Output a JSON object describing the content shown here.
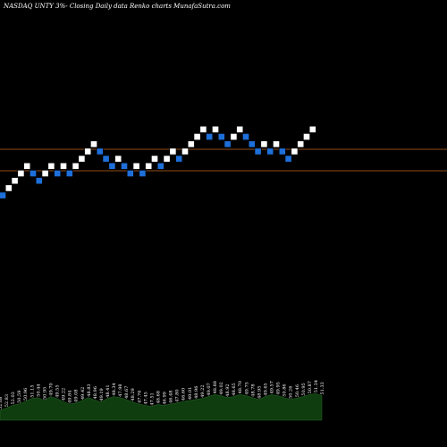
{
  "chart_data": {
    "type": "renko",
    "title": "NASDAQ UNTY 3%-  Closing Daily data Renko  charts MunafaSutra.com",
    "colors": {
      "up": "#ffffff",
      "down": "#1e6fd9",
      "line": "#c0641e",
      "volume": "#0f3d0f"
    },
    "reference_lines_price": [
      47.6,
      45.8
    ],
    "bricks": [
      {
        "dir": "down",
        "level": 42
      },
      {
        "dir": "up",
        "level": 43
      },
      {
        "dir": "up",
        "level": 44
      },
      {
        "dir": "up",
        "level": 45
      },
      {
        "dir": "up",
        "level": 46
      },
      {
        "dir": "down",
        "level": 45
      },
      {
        "dir": "down",
        "level": 44
      },
      {
        "dir": "up",
        "level": 45
      },
      {
        "dir": "up",
        "level": 46
      },
      {
        "dir": "down",
        "level": 45
      },
      {
        "dir": "up",
        "level": 46
      },
      {
        "dir": "down",
        "level": 45
      },
      {
        "dir": "up",
        "level": 46
      },
      {
        "dir": "up",
        "level": 47
      },
      {
        "dir": "up",
        "level": 48
      },
      {
        "dir": "up",
        "level": 49
      },
      {
        "dir": "down",
        "level": 48
      },
      {
        "dir": "down",
        "level": 47
      },
      {
        "dir": "down",
        "level": 46
      },
      {
        "dir": "up",
        "level": 47
      },
      {
        "dir": "down",
        "level": 46
      },
      {
        "dir": "down",
        "level": 45
      },
      {
        "dir": "up",
        "level": 46
      },
      {
        "dir": "down",
        "level": 45
      },
      {
        "dir": "up",
        "level": 46
      },
      {
        "dir": "up",
        "level": 47
      },
      {
        "dir": "down",
        "level": 46
      },
      {
        "dir": "up",
        "level": 47
      },
      {
        "dir": "up",
        "level": 48
      },
      {
        "dir": "down",
        "level": 47
      },
      {
        "dir": "up",
        "level": 48
      },
      {
        "dir": "up",
        "level": 49
      },
      {
        "dir": "up",
        "level": 50
      },
      {
        "dir": "up",
        "level": 51
      },
      {
        "dir": "down",
        "level": 50
      },
      {
        "dir": "up",
        "level": 51
      },
      {
        "dir": "down",
        "level": 50
      },
      {
        "dir": "down",
        "level": 49
      },
      {
        "dir": "up",
        "level": 50
      },
      {
        "dir": "up",
        "level": 51
      },
      {
        "dir": "down",
        "level": 50
      },
      {
        "dir": "down",
        "level": 49
      },
      {
        "dir": "down",
        "level": 48
      },
      {
        "dir": "up",
        "level": 49
      },
      {
        "dir": "down",
        "level": 48
      },
      {
        "dir": "up",
        "level": 49
      },
      {
        "dir": "down",
        "level": 48
      },
      {
        "dir": "down",
        "level": 47
      },
      {
        "dir": "up",
        "level": 48
      },
      {
        "dir": "up",
        "level": 49
      },
      {
        "dir": "up",
        "level": 50
      },
      {
        "dir": "up",
        "level": 51
      }
    ],
    "volume": {
      "values": [
        20,
        25,
        30,
        33,
        38,
        44,
        46,
        40,
        48,
        44,
        38,
        33,
        35,
        40,
        46,
        41,
        37,
        44,
        48,
        46,
        42,
        37,
        33,
        30,
        28,
        32,
        30,
        33,
        35,
        38,
        40,
        42,
        44,
        48,
        52,
        50,
        46,
        48,
        52,
        50,
        46,
        42,
        48,
        52,
        50,
        46,
        42,
        45,
        48,
        52,
        54,
        50
      ],
      "labels": [
        "52.08",
        "52.83",
        "52.03",
        "50.59",
        "50.96",
        "51.15",
        "50.44",
        "50.95",
        "49.70",
        "49.55",
        "49.22",
        "49.84",
        "49.08",
        "49.42",
        "48.83",
        "48.96",
        "49.19",
        "48.41",
        "48.34",
        "47.98",
        "48.67",
        "48.29",
        "47.76",
        "47.45",
        "47.51",
        "48.68",
        "46.99",
        "46.48",
        "47.80",
        "46.60",
        "49.01",
        "48.96",
        "49.22",
        "49.07",
        "48.88",
        "49.02",
        "48.92",
        "48.65",
        "48.70",
        "49.75",
        "48.78",
        "48.95",
        "49.65",
        "49.57",
        "49.95",
        "50.86",
        "50.26",
        "50.46",
        "50.95",
        "50.87",
        "51.34",
        "51.33"
      ]
    }
  }
}
